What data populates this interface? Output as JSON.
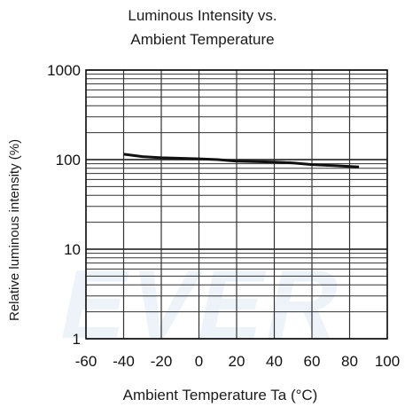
{
  "chart_data": {
    "type": "line",
    "title_lines": [
      "Luminous Intensity vs.",
      "Ambient Temperature"
    ],
    "xlabel": "Ambient Temperature Ta (°C)",
    "ylabel": "Relative luminous intensity (%)",
    "x_ticks": [
      -60,
      -40,
      -20,
      0,
      20,
      40,
      60,
      80,
      100
    ],
    "x_tick_labels": [
      "-60",
      "-40",
      "-20",
      "0",
      "20",
      "40",
      "60",
      "80",
      "100"
    ],
    "y_ticks": [
      1,
      10,
      100,
      1000
    ],
    "y_tick_labels": [
      "1",
      "10",
      "100",
      "1000"
    ],
    "xlim": [
      -60,
      100
    ],
    "ylim": [
      1,
      1000
    ],
    "y_scale": "log",
    "grid": true,
    "series": [
      {
        "x": [
          -40,
          -30,
          -20,
          0,
          10,
          20,
          40,
          50,
          60,
          70,
          85
        ],
        "y": [
          115,
          108,
          105,
          102,
          100,
          96,
          94,
          92,
          88,
          86,
          83
        ]
      }
    ],
    "watermark": "EVER"
  },
  "colors": {
    "grid": "#333333",
    "line": "#111111",
    "watermark": "#dfeaf5"
  }
}
